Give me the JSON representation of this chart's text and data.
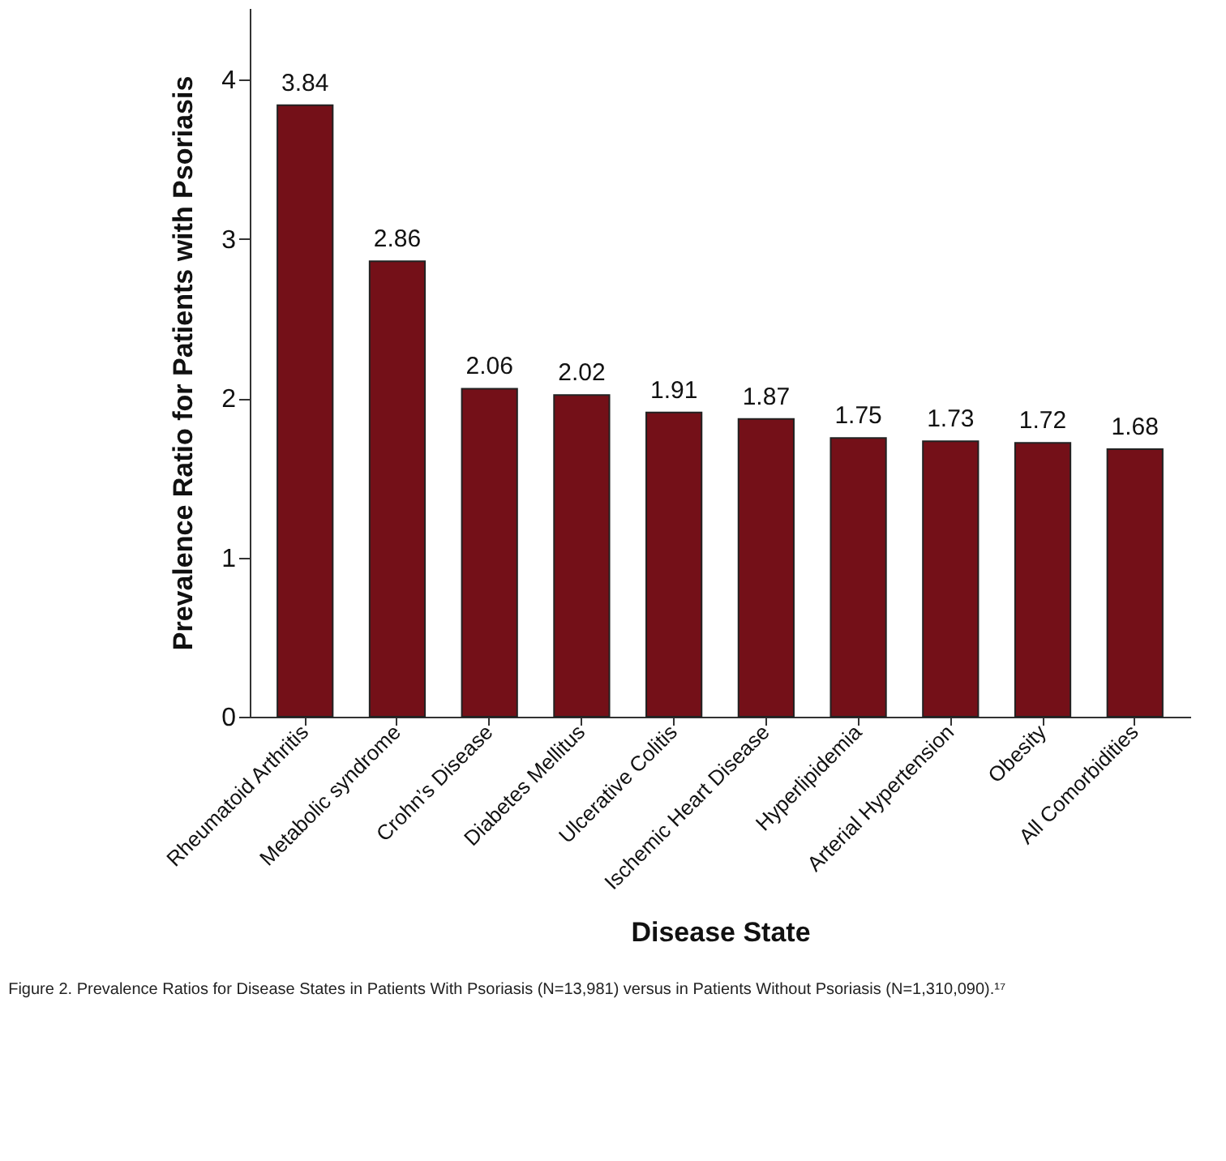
{
  "chart_data": {
    "type": "bar",
    "xlabel": "Disease State",
    "ylabel": "Prevalence Ratio for Patients with Psoriasis",
    "categories": [
      "Rheumatoid Arthritis",
      "Metabolic syndrome",
      "Crohn’s Disease",
      "Diabetes Mellitus",
      "Ulcerative Colitis",
      "Ischemic Heart Disease",
      "Hyperlipidemia",
      "Arterial Hypertension",
      "Obesity",
      "All Comorbidities"
    ],
    "values": [
      3.84,
      2.86,
      2.06,
      2.02,
      1.91,
      1.87,
      1.75,
      1.73,
      1.72,
      1.68
    ],
    "color": "#741018",
    "data_labels": true,
    "grid": false,
    "ylim": [
      0,
      4.45
    ],
    "yticks": [
      0,
      1,
      2,
      3,
      4
    ],
    "annotations": [
      "Figure 2. Prevalence Ratios for Disease States in Patients With Psoriasis (N=13,981) versus in Patients Without Psoriasis (N=1,310,090).¹⁷"
    ]
  }
}
